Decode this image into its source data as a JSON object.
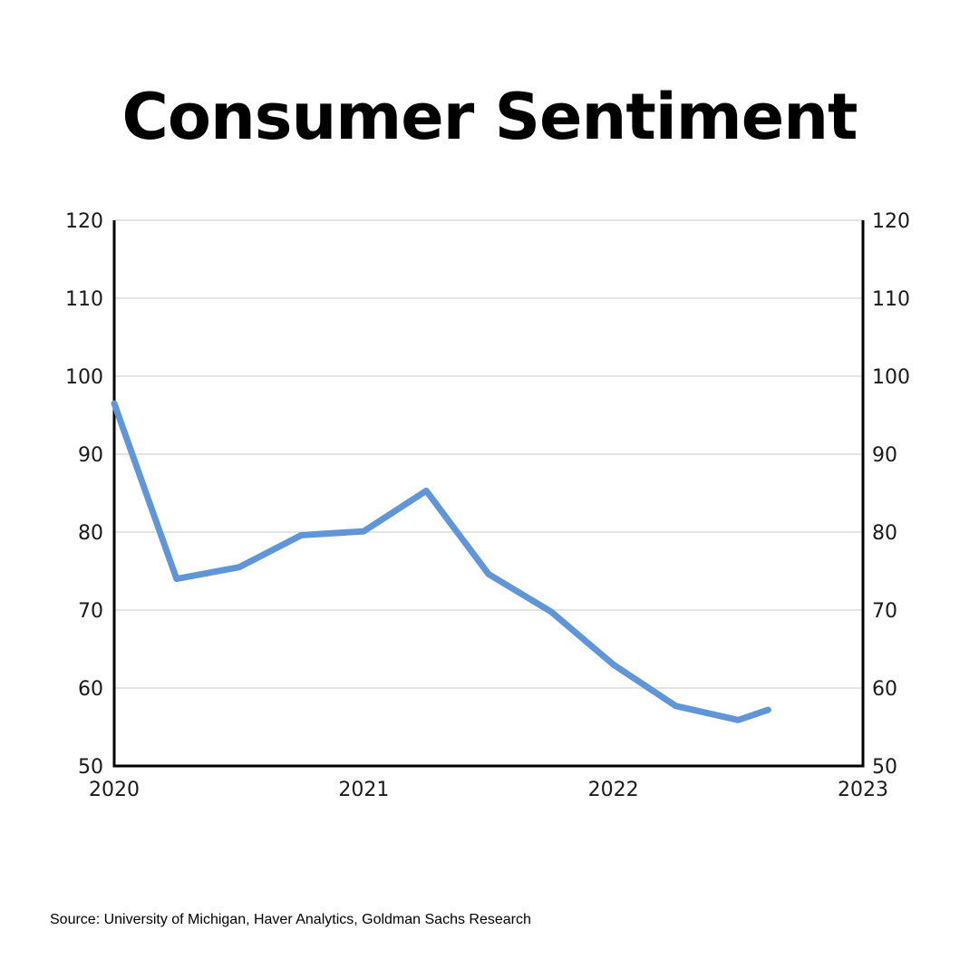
{
  "title": "Consumer Sentiment",
  "source": "Source: University of Michigan, Haver Analytics, Goldman Sachs Research",
  "colors": {
    "line": "#6096D8",
    "grid": "#c8c8c8",
    "axis": "#000000"
  },
  "chart_data": {
    "type": "line",
    "title": "Consumer Sentiment",
    "xlabel": "",
    "ylabel": "",
    "xlim": [
      2020,
      2023
    ],
    "ylim": [
      50,
      120
    ],
    "x_ticks": [
      "2020",
      "2021",
      "2022",
      "2023"
    ],
    "y_ticks": [
      50,
      60,
      70,
      80,
      90,
      100,
      110,
      120
    ],
    "y_axis_duplicated_right": true,
    "grid": "horizontal",
    "legend": "none",
    "series": [
      {
        "x": [
          2020.0,
          2020.25,
          2020.5,
          2020.75,
          2021.0,
          2021.25,
          2021.5,
          2021.75,
          2022.0,
          2022.25,
          2022.5,
          2022.62
        ],
        "y": [
          96.5,
          74,
          75.5,
          79.6,
          80.1,
          85.3,
          74.6,
          69.8,
          63,
          57.7,
          55.9,
          57.2
        ]
      }
    ]
  }
}
